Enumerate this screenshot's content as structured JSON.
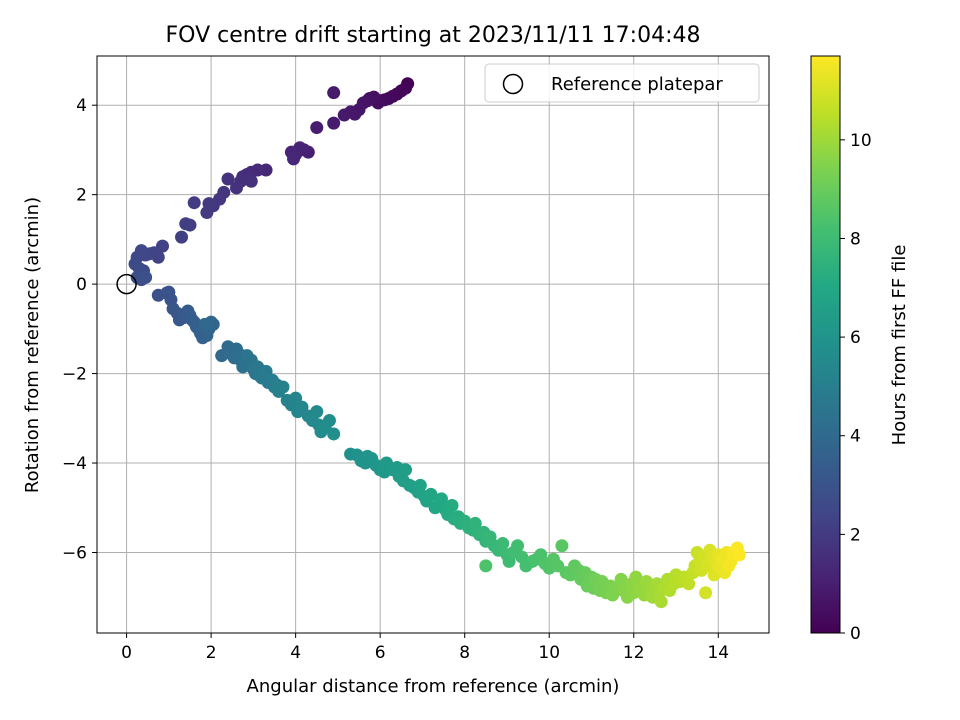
{
  "chart_data": {
    "type": "scatter",
    "title": "FOV centre drift starting at 2023/11/11 17:04:48",
    "xlabel": "Angular distance from reference (arcmin)",
    "ylabel": "Rotation from reference (arcmin)",
    "xlim": [
      -0.7,
      15.2
    ],
    "ylim": [
      -7.8,
      5.1
    ],
    "xticks": [
      "0",
      "2",
      "4",
      "6",
      "8",
      "10",
      "12",
      "14"
    ],
    "yticks": [
      "−6",
      "−4",
      "−2",
      "0",
      "2",
      "4"
    ],
    "grid": true,
    "legend": {
      "placement": "top-right",
      "label": "Reference platepar"
    },
    "reference_point": {
      "x": 0,
      "y": 0
    },
    "colorbar": {
      "label": "Hours from first FF file",
      "range": [
        0,
        11.7
      ],
      "ticks": [
        "0",
        "2",
        "4",
        "6",
        "8",
        "10"
      ],
      "colormap": "viridis"
    },
    "series": [
      {
        "values_note_columns": [
          "x",
          "y",
          "hours"
        ],
        "points": [
          [
            6.65,
            4.48
          ],
          [
            6.6,
            4.38
          ],
          [
            6.5,
            4.32
          ],
          [
            6.4,
            4.25
          ],
          [
            6.3,
            4.2
          ],
          [
            6.2,
            4.15
          ],
          [
            6.1,
            4.12
          ],
          [
            6.0,
            4.1
          ],
          [
            5.95,
            4.05
          ],
          [
            5.85,
            4.18
          ],
          [
            5.75,
            4.15
          ],
          [
            5.7,
            4.1
          ],
          [
            5.6,
            4.05
          ],
          [
            5.5,
            3.9
          ],
          [
            5.4,
            3.8
          ],
          [
            5.3,
            3.85
          ],
          [
            5.15,
            3.78
          ],
          [
            4.9,
            4.28
          ],
          [
            4.9,
            3.6
          ],
          [
            4.5,
            3.5
          ],
          [
            4.3,
            2.95
          ],
          [
            4.2,
            3.0
          ],
          [
            4.1,
            3.05
          ],
          [
            4.0,
            2.9
          ],
          [
            3.9,
            2.95
          ],
          [
            3.95,
            2.8
          ],
          [
            3.3,
            2.55
          ],
          [
            3.1,
            2.55
          ],
          [
            2.95,
            2.5
          ],
          [
            2.85,
            2.45
          ],
          [
            2.75,
            2.4
          ],
          [
            2.7,
            2.3
          ],
          [
            2.95,
            2.3
          ],
          [
            2.6,
            2.15
          ],
          [
            2.4,
            2.35
          ],
          [
            2.3,
            2.05
          ],
          [
            2.2,
            1.9
          ],
          [
            2.05,
            1.75
          ],
          [
            1.95,
            1.8
          ],
          [
            1.9,
            1.6
          ],
          [
            1.6,
            1.82
          ],
          [
            1.5,
            1.32
          ],
          [
            1.4,
            1.35
          ],
          [
            1.3,
            1.05
          ],
          [
            0.85,
            0.85
          ],
          [
            0.75,
            0.6
          ],
          [
            0.65,
            0.7
          ],
          [
            0.55,
            0.68
          ],
          [
            0.45,
            0.65
          ],
          [
            0.35,
            0.75
          ],
          [
            0.25,
            0.6
          ],
          [
            0.2,
            0.45
          ],
          [
            0.3,
            0.35
          ],
          [
            0.4,
            0.3
          ],
          [
            0.35,
            0.1
          ],
          [
            0.25,
            0.15
          ],
          [
            0.45,
            0.15
          ],
          [
            0.75,
            -0.25
          ],
          [
            0.95,
            -0.2
          ],
          [
            1.0,
            -0.18
          ],
          [
            1.05,
            -0.35
          ],
          [
            1.1,
            -0.55
          ],
          [
            1.2,
            -0.65
          ],
          [
            1.25,
            -0.8
          ],
          [
            1.35,
            -0.75
          ],
          [
            1.45,
            -0.6
          ],
          [
            1.5,
            -0.7
          ],
          [
            1.55,
            -0.8
          ],
          [
            1.6,
            -0.85
          ],
          [
            1.65,
            -0.95
          ],
          [
            1.7,
            -1.0
          ],
          [
            1.75,
            -1.1
          ],
          [
            1.8,
            -1.2
          ],
          [
            1.9,
            -1.15
          ],
          [
            1.95,
            -1.0
          ],
          [
            2.0,
            -0.85
          ],
          [
            2.05,
            -0.9
          ],
          [
            1.85,
            -0.9
          ],
          [
            2.25,
            -1.6
          ],
          [
            2.4,
            -1.4
          ],
          [
            2.45,
            -1.55
          ],
          [
            2.55,
            -1.65
          ],
          [
            2.6,
            -1.45
          ],
          [
            2.65,
            -1.55
          ],
          [
            2.7,
            -1.7
          ],
          [
            2.75,
            -1.85
          ],
          [
            2.8,
            -1.75
          ],
          [
            2.85,
            -1.6
          ],
          [
            2.95,
            -1.7
          ],
          [
            3.0,
            -1.9
          ],
          [
            3.05,
            -2.0
          ],
          [
            3.1,
            -1.85
          ],
          [
            3.15,
            -2.05
          ],
          [
            3.2,
            -2.1
          ],
          [
            3.3,
            -1.95
          ],
          [
            3.35,
            -2.2
          ],
          [
            3.45,
            -2.15
          ],
          [
            3.5,
            -2.3
          ],
          [
            3.55,
            -2.25
          ],
          [
            3.6,
            -2.4
          ],
          [
            3.7,
            -2.3
          ],
          [
            3.8,
            -2.6
          ],
          [
            3.9,
            -2.7
          ],
          [
            4.0,
            -2.55
          ],
          [
            4.05,
            -2.85
          ],
          [
            4.15,
            -2.75
          ],
          [
            4.3,
            -2.95
          ],
          [
            4.4,
            -3.05
          ],
          [
            4.5,
            -2.85
          ],
          [
            4.55,
            -3.15
          ],
          [
            4.6,
            -3.3
          ],
          [
            4.7,
            -3.2
          ],
          [
            4.8,
            -3.05
          ],
          [
            4.9,
            -3.35
          ],
          [
            5.3,
            -3.8
          ],
          [
            5.45,
            -3.82
          ],
          [
            5.55,
            -3.95
          ],
          [
            5.65,
            -4.0
          ],
          [
            5.7,
            -3.85
          ],
          [
            5.8,
            -3.9
          ],
          [
            5.9,
            -4.05
          ],
          [
            6.0,
            -4.15
          ],
          [
            6.1,
            -4.2
          ],
          [
            6.15,
            -4.0
          ],
          [
            6.3,
            -4.15
          ],
          [
            6.4,
            -4.1
          ],
          [
            6.45,
            -4.3
          ],
          [
            6.55,
            -4.4
          ],
          [
            6.6,
            -4.15
          ],
          [
            6.7,
            -4.5
          ],
          [
            6.8,
            -4.55
          ],
          [
            6.9,
            -4.65
          ],
          [
            6.95,
            -4.5
          ],
          [
            7.05,
            -4.75
          ],
          [
            7.1,
            -4.85
          ],
          [
            7.2,
            -4.7
          ],
          [
            7.3,
            -5.0
          ],
          [
            7.4,
            -4.9
          ],
          [
            7.45,
            -4.8
          ],
          [
            7.55,
            -5.05
          ],
          [
            7.6,
            -5.15
          ],
          [
            7.7,
            -4.95
          ],
          [
            7.75,
            -5.25
          ],
          [
            7.85,
            -5.2
          ],
          [
            7.9,
            -5.35
          ],
          [
            8.0,
            -5.3
          ],
          [
            8.1,
            -5.45
          ],
          [
            8.2,
            -5.5
          ],
          [
            8.25,
            -5.35
          ],
          [
            8.35,
            -5.6
          ],
          [
            8.45,
            -5.55
          ],
          [
            8.5,
            -5.75
          ],
          [
            8.6,
            -5.65
          ],
          [
            8.7,
            -5.85
          ],
          [
            8.8,
            -5.95
          ],
          [
            8.9,
            -5.8
          ],
          [
            9.0,
            -6.05
          ],
          [
            9.05,
            -6.2
          ],
          [
            9.15,
            -6.0
          ],
          [
            9.25,
            -5.85
          ],
          [
            9.35,
            -6.1
          ],
          [
            9.45,
            -6.3
          ],
          [
            9.6,
            -6.2
          ],
          [
            9.7,
            -6.15
          ],
          [
            9.8,
            -6.05
          ],
          [
            8.5,
            -6.3
          ],
          [
            9.9,
            -6.25
          ],
          [
            10.0,
            -6.35
          ],
          [
            10.1,
            -6.15
          ],
          [
            10.2,
            -6.3
          ],
          [
            10.3,
            -5.85
          ],
          [
            10.4,
            -6.45
          ],
          [
            10.5,
            -6.5
          ],
          [
            10.6,
            -6.3
          ],
          [
            10.7,
            -6.4
          ],
          [
            10.75,
            -6.6
          ],
          [
            10.85,
            -6.45
          ],
          [
            10.9,
            -6.75
          ],
          [
            11.0,
            -6.55
          ],
          [
            11.05,
            -6.8
          ],
          [
            11.1,
            -6.6
          ],
          [
            11.2,
            -6.85
          ],
          [
            11.25,
            -6.65
          ],
          [
            11.35,
            -6.9
          ],
          [
            11.45,
            -6.75
          ],
          [
            11.5,
            -6.95
          ],
          [
            11.6,
            -6.8
          ],
          [
            11.7,
            -6.6
          ],
          [
            11.75,
            -6.85
          ],
          [
            11.85,
            -7.0
          ],
          [
            11.95,
            -6.7
          ],
          [
            12.0,
            -6.9
          ],
          [
            12.05,
            -6.55
          ],
          [
            12.15,
            -6.8
          ],
          [
            12.25,
            -6.95
          ],
          [
            12.3,
            -6.65
          ],
          [
            12.4,
            -6.85
          ],
          [
            12.45,
            -7.0
          ],
          [
            12.55,
            -6.7
          ],
          [
            12.6,
            -6.9
          ],
          [
            12.65,
            -7.1
          ],
          [
            12.7,
            -6.8
          ],
          [
            12.8,
            -6.6
          ],
          [
            12.85,
            -6.85
          ],
          [
            12.95,
            -6.7
          ],
          [
            13.0,
            -6.5
          ],
          [
            13.1,
            -6.65
          ],
          [
            13.2,
            -6.55
          ],
          [
            13.3,
            -6.7
          ],
          [
            13.4,
            -6.45
          ],
          [
            13.45,
            -6.3
          ],
          [
            13.5,
            -6.0
          ],
          [
            13.55,
            -6.2
          ],
          [
            13.6,
            -6.4
          ],
          [
            13.65,
            -6.1
          ],
          [
            13.7,
            -6.9
          ],
          [
            13.75,
            -6.3
          ],
          [
            13.8,
            -5.95
          ],
          [
            13.85,
            -6.15
          ],
          [
            13.9,
            -6.5
          ],
          [
            13.95,
            -6.25
          ],
          [
            14.0,
            -6.05
          ],
          [
            14.05,
            -6.35
          ],
          [
            14.1,
            -6.15
          ],
          [
            14.15,
            -6.45
          ],
          [
            14.2,
            -6.0
          ],
          [
            14.25,
            -6.3
          ],
          [
            14.3,
            -6.2
          ],
          [
            14.35,
            -6.0
          ],
          [
            14.45,
            -5.9
          ],
          [
            14.5,
            -6.05
          ]
        ]
      }
    ]
  }
}
